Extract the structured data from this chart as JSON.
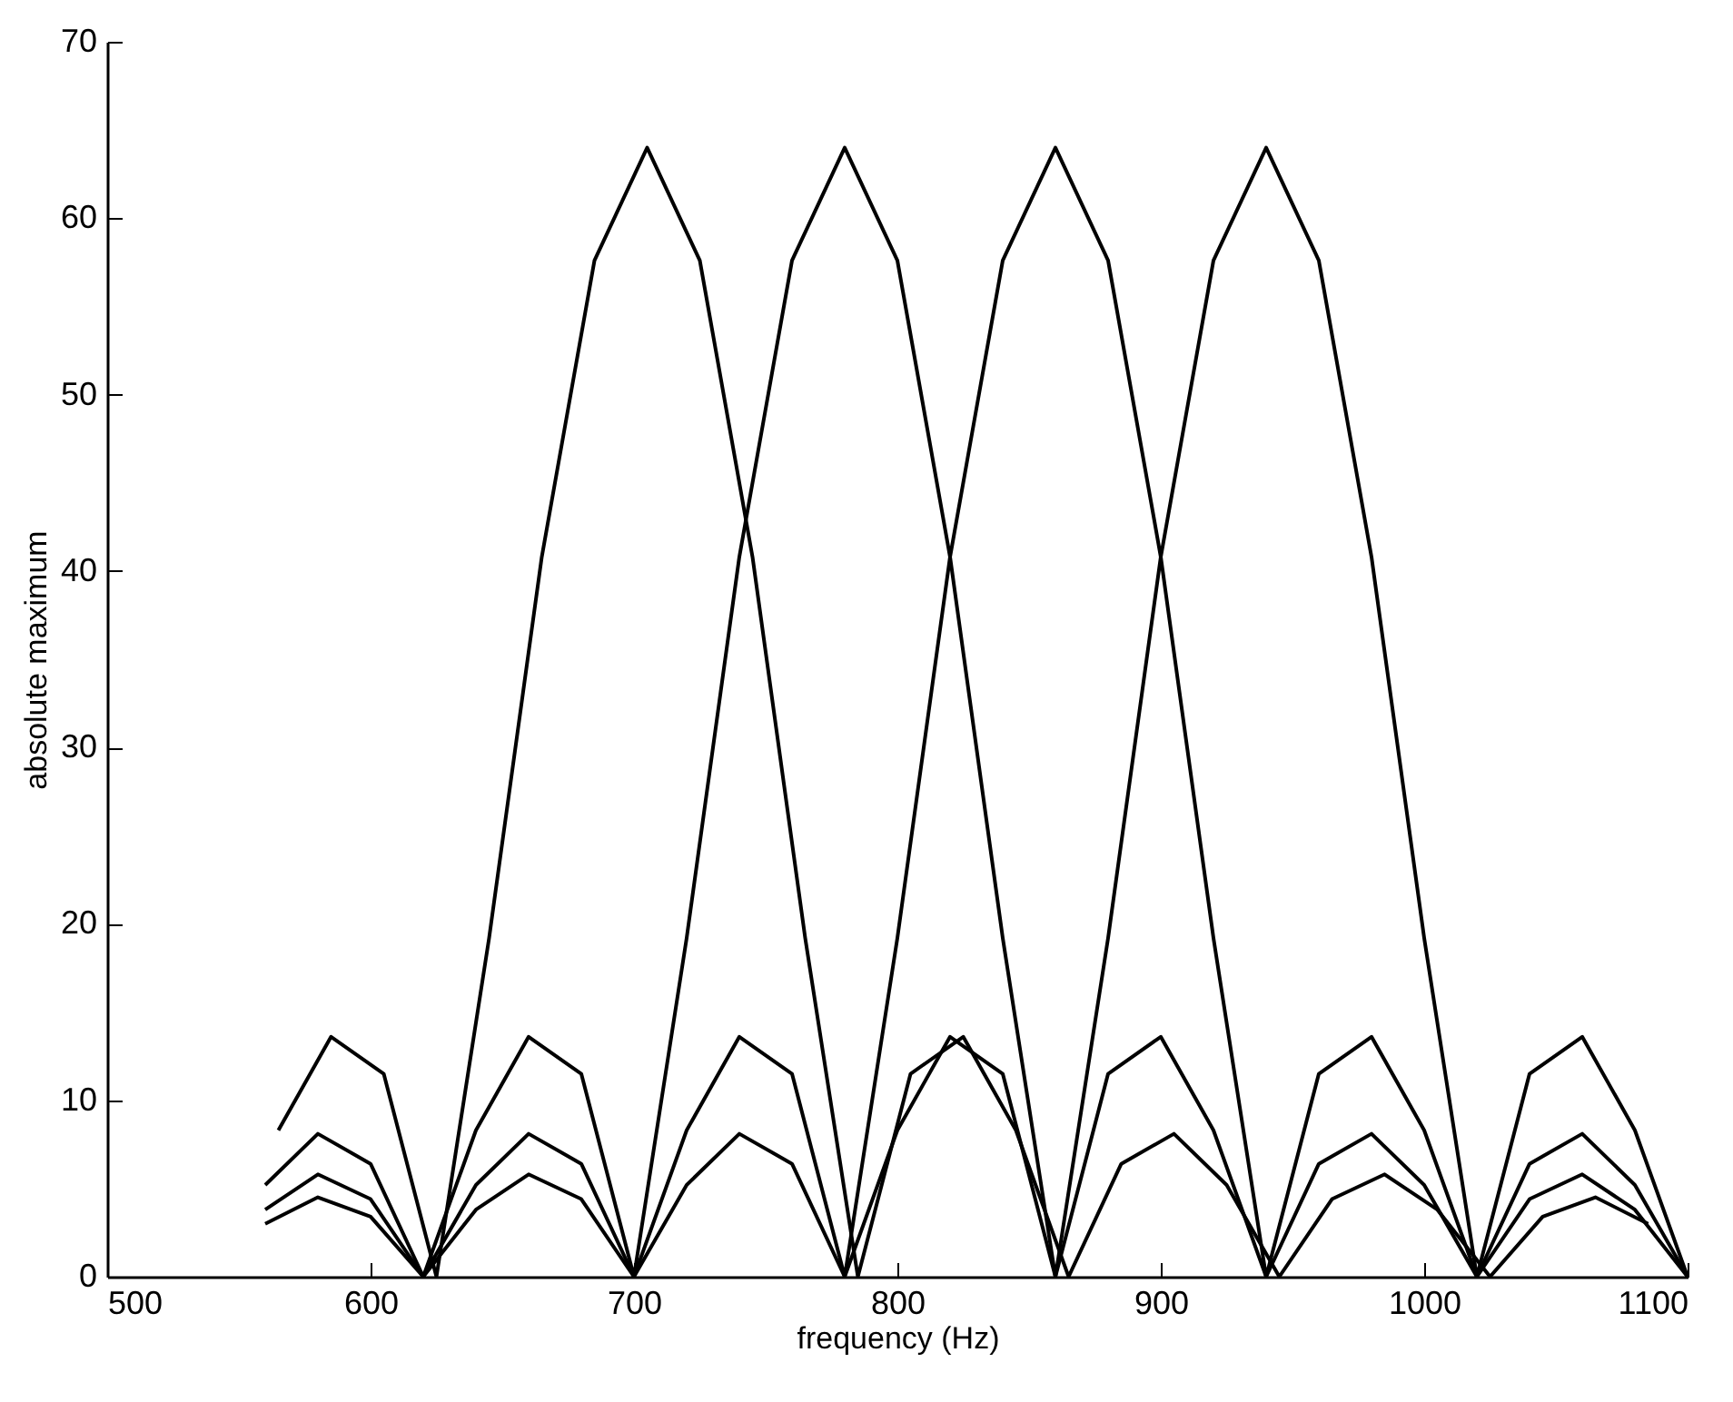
{
  "chart_data": {
    "type": "line",
    "xlabel": "frequency (Hz)",
    "ylabel": "absolute maximum",
    "xlim": [
      500,
      1100
    ],
    "xticks": [
      500,
      600,
      700,
      800,
      900,
      1000,
      1100
    ],
    "ylim": [
      0,
      70
    ],
    "yticks": [
      0,
      10,
      20,
      30,
      40,
      50,
      60,
      70
    ],
    "grid": false,
    "legend": false,
    "series": [
      {
        "color": "#000000",
        "x": [
          565,
          585,
          605,
          625,
          645,
          665,
          685,
          705,
          725,
          745,
          765,
          785,
          805,
          825,
          845,
          865,
          885,
          905,
          925,
          945,
          965,
          985,
          1005,
          1025,
          1045,
          1065,
          1085
        ],
        "values": [
          8.3,
          13.6,
          11.5,
          0,
          19.2,
          40.8,
          57.6,
          64,
          57.6,
          40.8,
          19.2,
          0,
          11.5,
          13.6,
          8.3,
          0,
          6.4,
          8.1,
          5.2,
          0,
          4.4,
          5.8,
          3.8,
          0,
          3.4,
          4.5,
          3.0
        ]
      },
      {
        "color": "#000000",
        "x": [
          560,
          580,
          600,
          620,
          640,
          660,
          680,
          700,
          720,
          740,
          760,
          780,
          800,
          820,
          840,
          860,
          880,
          900,
          920,
          940,
          960,
          980,
          1000,
          1020,
          1040,
          1060,
          1080,
          1100
        ],
        "values": [
          5.2,
          8.1,
          6.4,
          0,
          8.3,
          13.6,
          11.5,
          0,
          19.2,
          40.8,
          57.6,
          64,
          57.6,
          40.8,
          19.2,
          0,
          11.5,
          13.6,
          8.3,
          0,
          6.4,
          8.1,
          5.2,
          0,
          4.4,
          5.8,
          3.8,
          0
        ]
      },
      {
        "color": "#000000",
        "x": [
          560,
          580,
          600,
          620,
          640,
          660,
          680,
          700,
          720,
          740,
          760,
          780,
          800,
          820,
          840,
          860,
          880,
          900,
          920,
          940,
          960,
          980,
          1000,
          1020,
          1040,
          1060,
          1080,
          1100
        ],
        "values": [
          3.8,
          5.8,
          4.4,
          0,
          5.2,
          8.1,
          6.4,
          0,
          8.3,
          13.6,
          11.5,
          0,
          19.2,
          40.8,
          57.6,
          64,
          57.6,
          40.8,
          19.2,
          0,
          11.5,
          13.6,
          8.3,
          0,
          6.4,
          8.1,
          5.2,
          0
        ]
      },
      {
        "color": "#000000",
        "x": [
          560,
          580,
          600,
          620,
          640,
          660,
          680,
          700,
          720,
          740,
          760,
          780,
          800,
          820,
          840,
          860,
          880,
          900,
          920,
          940,
          960,
          980,
          1000,
          1020,
          1040,
          1060,
          1080,
          1100
        ],
        "values": [
          3.0,
          4.5,
          3.4,
          0,
          3.8,
          5.8,
          4.4,
          0,
          5.2,
          8.1,
          6.4,
          0,
          8.3,
          13.6,
          11.5,
          0,
          19.2,
          40.8,
          57.6,
          64,
          57.6,
          40.8,
          19.2,
          0,
          11.5,
          13.6,
          8.3,
          0
        ]
      }
    ]
  }
}
